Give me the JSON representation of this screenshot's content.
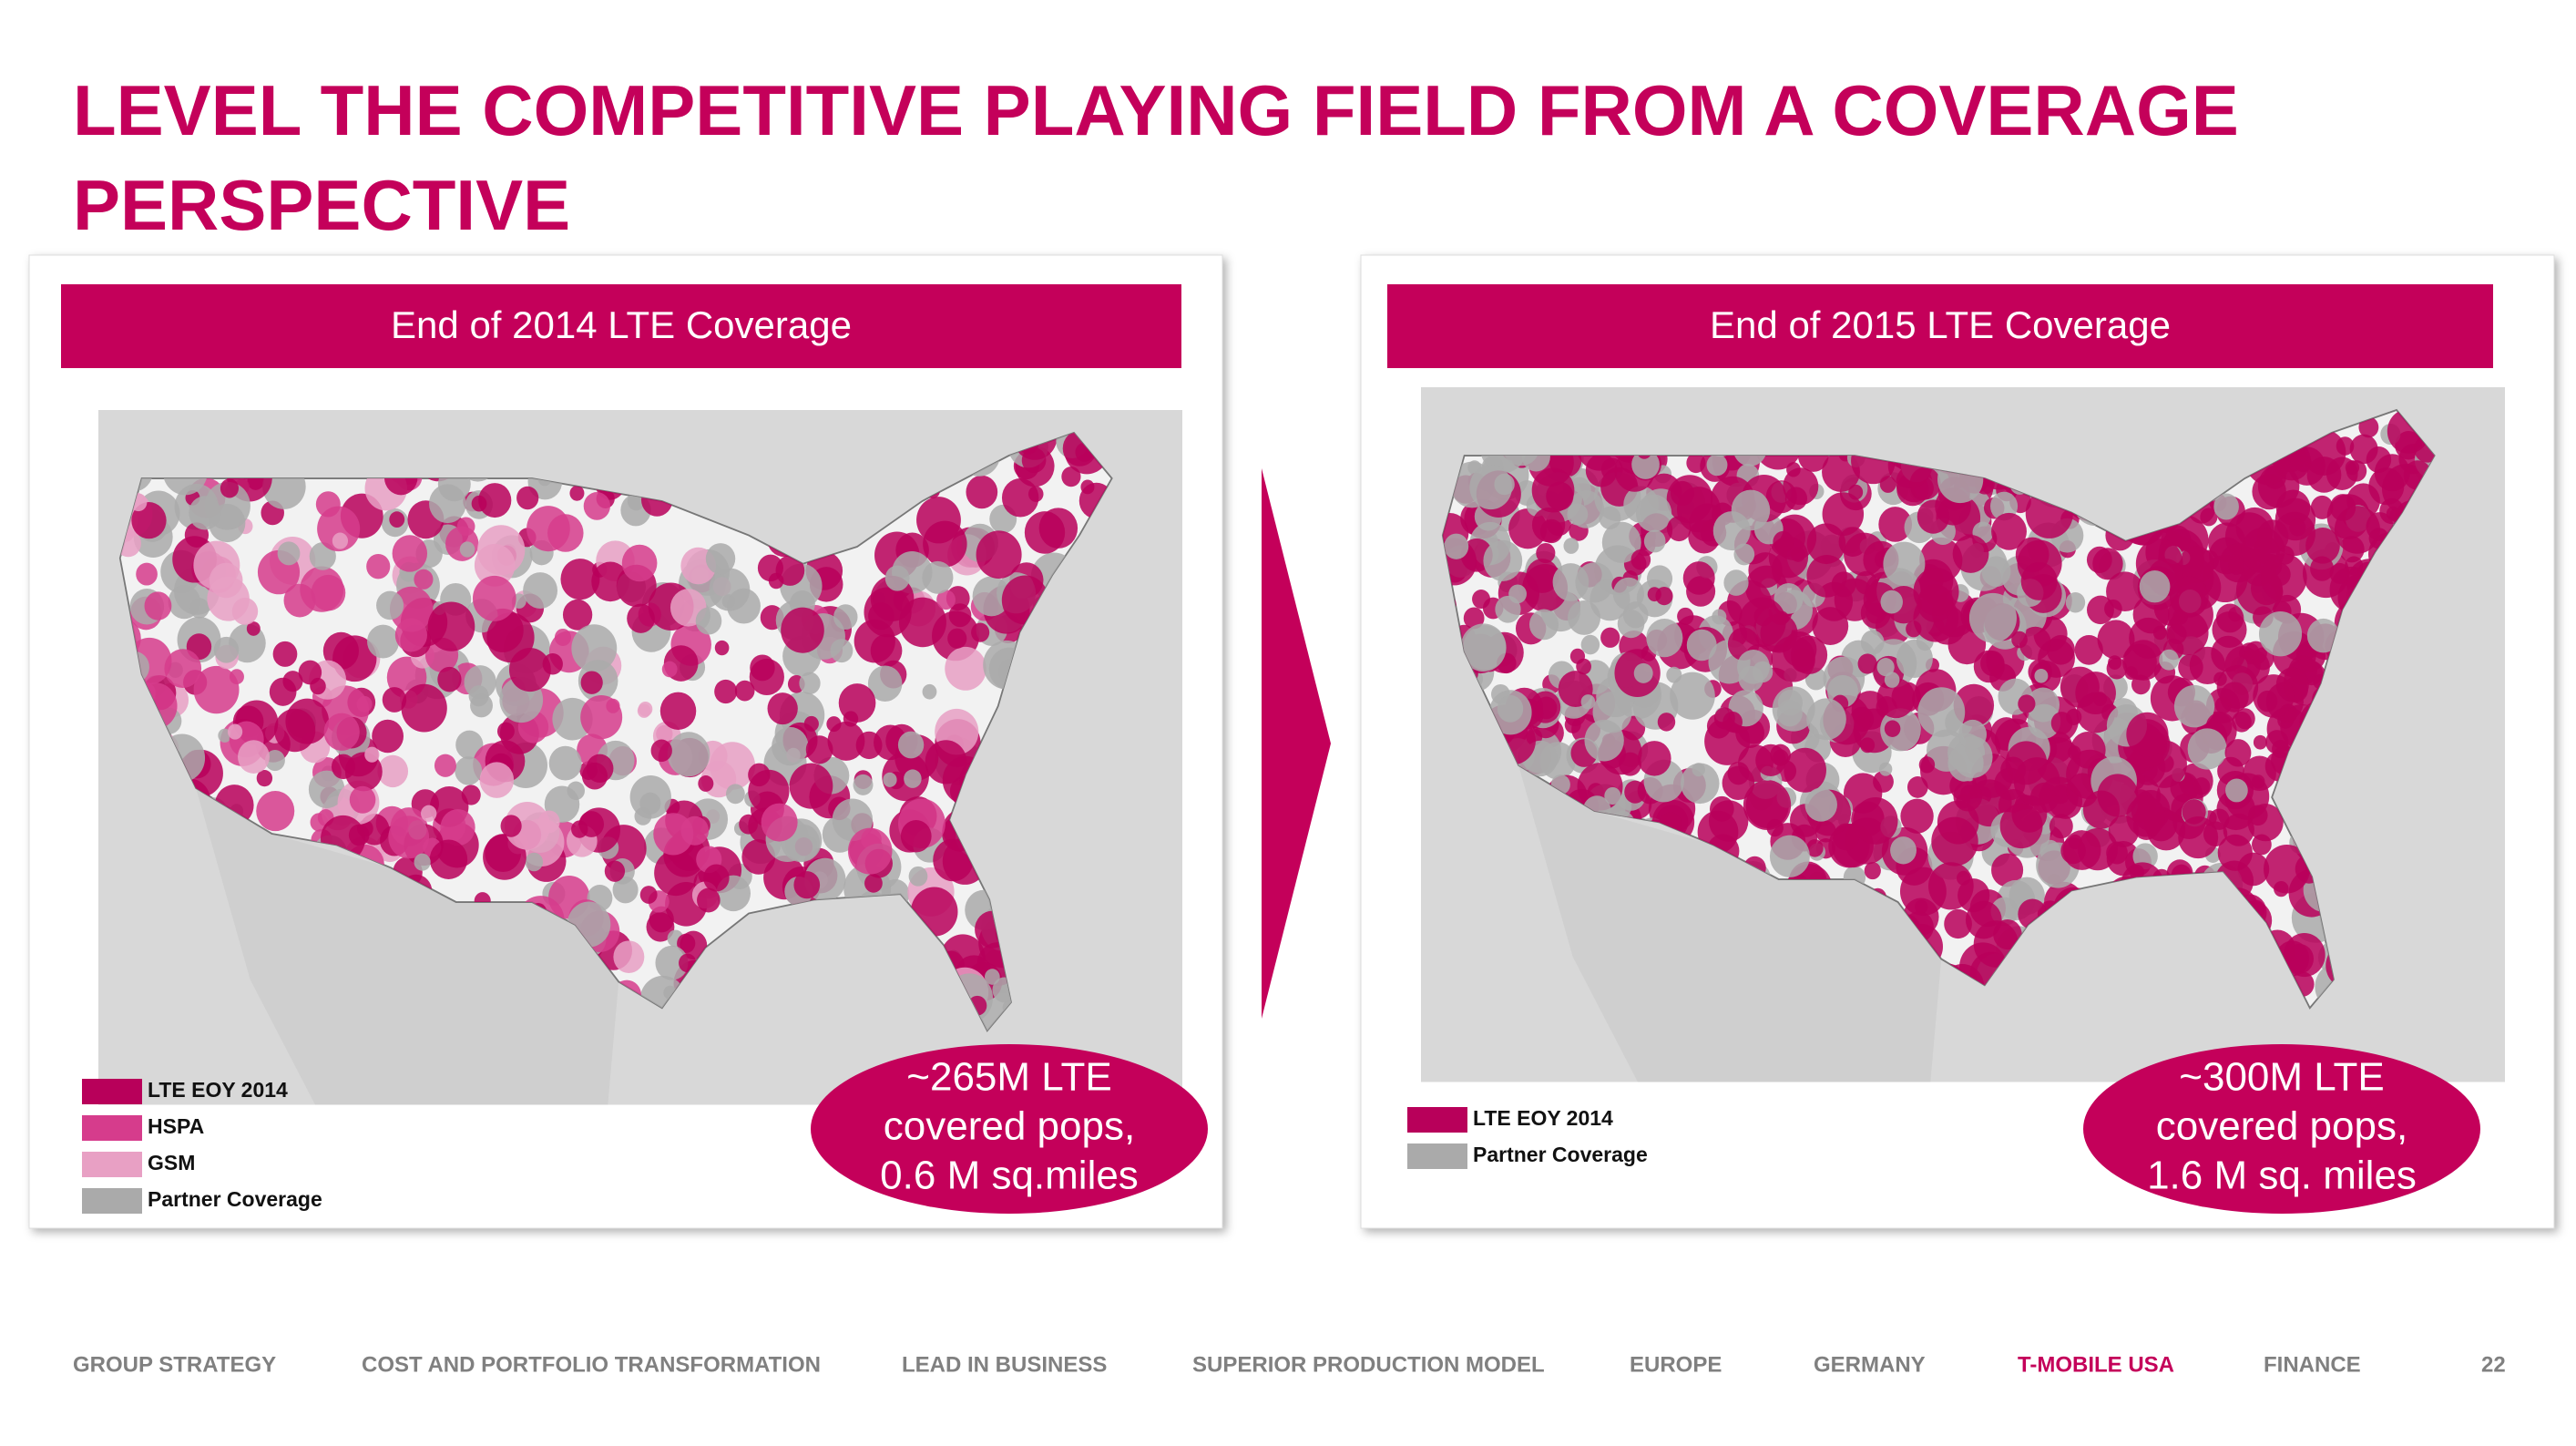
{
  "title_lines": [
    "LEVEL THE COMPETITIVE PLAYING FIELD FROM A COVERAGE",
    "PERSPECTIVE"
  ],
  "panels": [
    {
      "header": "End of 2014 LTE Coverage",
      "legend": [
        {
          "label": "LTE EOY 2014",
          "color": "#b8005a"
        },
        {
          "label": "HSPA",
          "color": "#d63c8c"
        },
        {
          "label": "GSM",
          "color": "#e8a0c4"
        },
        {
          "label": "Partner Coverage",
          "color": "#aaaaaa"
        }
      ],
      "callout": [
        "~265M LTE",
        "covered pops,",
        "0.6 M sq.miles"
      ]
    },
    {
      "header": "End of 2015 LTE Coverage",
      "legend": [
        {
          "label": "LTE EOY 2014",
          "color": "#b8005a"
        },
        {
          "label": "Partner Coverage",
          "color": "#aaaaaa"
        }
      ],
      "callout": [
        "~300M LTE",
        "covered pops,",
        "1.6 M sq. miles"
      ]
    }
  ],
  "footer": {
    "nav": [
      {
        "label": "GROUP STRATEGY",
        "color": "#808080"
      },
      {
        "label": "COST AND PORTFOLIO TRANSFORMATION",
        "color": "#808080"
      },
      {
        "label": "LEAD IN BUSINESS",
        "color": "#808080"
      },
      {
        "label": "SUPERIOR PRODUCTION MODEL",
        "color": "#808080"
      },
      {
        "label": "EUROPE",
        "color": "#808080"
      },
      {
        "label": "GERMANY",
        "color": "#808080"
      },
      {
        "label": "T-MOBILE USA",
        "color": "#c4005a"
      },
      {
        "label": "FINANCE",
        "color": "#808080"
      }
    ],
    "page": "22"
  }
}
